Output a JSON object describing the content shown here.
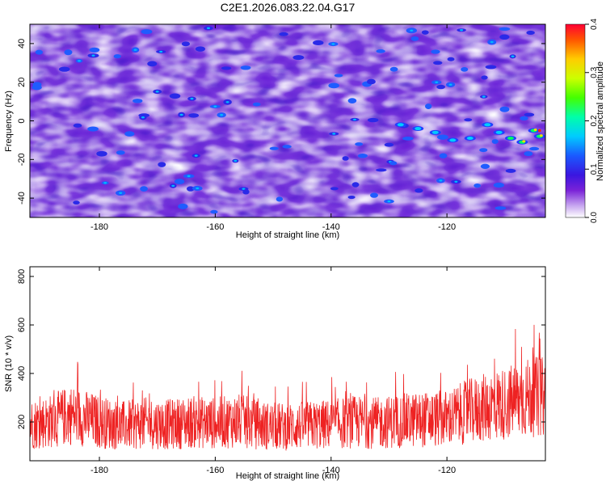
{
  "title": "C2E1.2026.083.22.04.G17",
  "chart_data": [
    {
      "type": "heatmap",
      "xlabel": "Height of straight line (km)",
      "ylabel": "Frequency (Hz)",
      "xlim": [
        -192,
        -103
      ],
      "ylim": [
        -50,
        50
      ],
      "xticks": [
        -180,
        -160,
        -140,
        -120
      ],
      "yticks": [
        -40,
        -20,
        0,
        20,
        40
      ],
      "colorbar": {
        "label": "Normalized spectral amplitude",
        "range": [
          0,
          0.4
        ],
        "ticks": [
          0.0,
          0.1,
          0.2,
          0.3,
          0.4
        ]
      },
      "colormap": [
        "#ffffff",
        "#e6d6f6",
        "#9a6fe6",
        "#6a1fd0",
        "#3a16e0",
        "#1a5aff",
        "#00ccff",
        "#00ff88",
        "#66ff00",
        "#ffee00",
        "#ff5500",
        "#ff0000"
      ],
      "grid": false
    },
    {
      "type": "line",
      "xlabel": "Height of straight line (km)",
      "ylabel": "SNR (10 * v/v)",
      "xlim": [
        -192,
        -103
      ],
      "ylim": [
        40,
        840
      ],
      "xticks": [
        -180,
        -160,
        -140,
        -120
      ],
      "yticks": [
        200,
        400,
        600,
        800
      ],
      "color": "#ee2222",
      "series": [
        {
          "x": [
            -192,
            -188,
            -185,
            -180,
            -176,
            -172,
            -168,
            -164,
            -160,
            -156,
            -152,
            -148,
            -144,
            -140,
            -136,
            -132,
            -128,
            -124,
            -120,
            -118,
            -116,
            -114,
            -112,
            -110,
            -108,
            -106,
            -104,
            -103
          ],
          "y": [
            190,
            205,
            230,
            200,
            185,
            195,
            190,
            200,
            195,
            205,
            185,
            180,
            185,
            190,
            200,
            195,
            205,
            210,
            215,
            230,
            245,
            255,
            270,
            275,
            290,
            300,
            305,
            300
          ]
        }
      ],
      "grid": false
    }
  ]
}
